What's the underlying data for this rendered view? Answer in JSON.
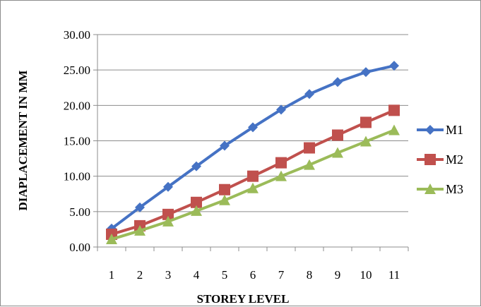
{
  "chart_data": {
    "type": "line",
    "xlabel": "STOREY LEVEL",
    "ylabel": "DIAPLACEMENT IN MM",
    "categories": [
      "1",
      "2",
      "3",
      "4",
      "5",
      "6",
      "7",
      "8",
      "9",
      "10",
      "11"
    ],
    "ylim": [
      0,
      30
    ],
    "yticks": [
      "0.00",
      "5.00",
      "10.00",
      "15.00",
      "20.00",
      "25.00",
      "30.00"
    ],
    "grid": "horizontal",
    "legend_position": "right",
    "series": [
      {
        "name": "M1",
        "color": "#4572C4",
        "marker": "diamond",
        "values": [
          2.6,
          5.6,
          8.5,
          11.4,
          14.3,
          16.9,
          19.4,
          21.6,
          23.3,
          24.7,
          25.6
        ]
      },
      {
        "name": "M2",
        "color": "#C0504D",
        "marker": "square",
        "values": [
          1.8,
          3.0,
          4.6,
          6.3,
          8.1,
          10.0,
          11.9,
          14.0,
          15.8,
          17.6,
          19.3
        ]
      },
      {
        "name": "M3",
        "color": "#9BBB59",
        "marker": "triangle",
        "values": [
          1.1,
          2.3,
          3.6,
          5.1,
          6.6,
          8.3,
          10.0,
          11.6,
          13.3,
          14.9,
          16.5
        ]
      }
    ]
  }
}
